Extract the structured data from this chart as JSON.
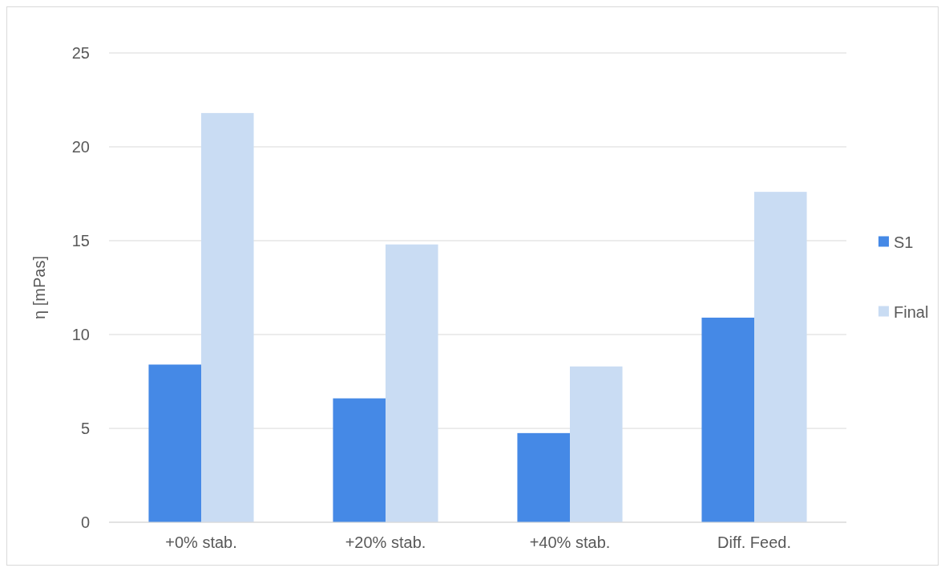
{
  "chart_data": {
    "type": "bar",
    "ylabel": "η [mPas]",
    "categories": [
      "+0% stab.",
      "+20% stab.",
      "+40% stab.",
      "Diff. Feed."
    ],
    "series": [
      {
        "name": "S1",
        "color": "#4589e6",
        "values": [
          8.4,
          6.6,
          4.75,
          10.9
        ]
      },
      {
        "name": "Final",
        "color": "#c9dcf3",
        "values": [
          21.8,
          14.8,
          8.3,
          17.6
        ]
      }
    ],
    "ylim": [
      0,
      25
    ],
    "yticks": [
      0,
      5,
      10,
      15,
      20,
      25
    ],
    "grid": "y",
    "legend": "right"
  }
}
